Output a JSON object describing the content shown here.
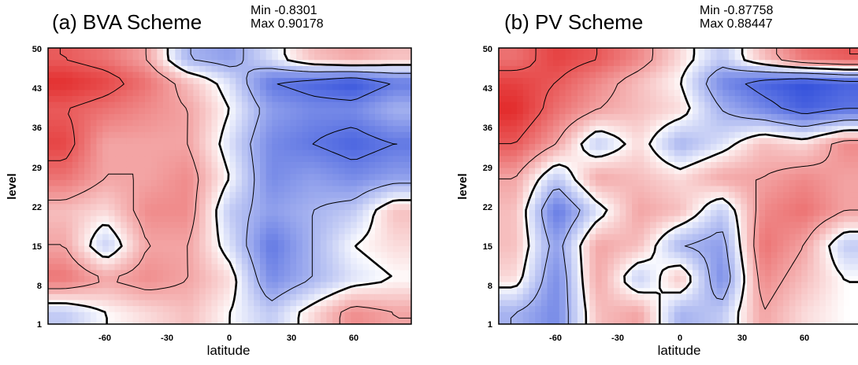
{
  "chart_data": [
    {
      "type": "heatmap",
      "title": "(a) BVA Scheme",
      "stats": {
        "min": "Min -0.8301",
        "max": "Max 0.90178"
      },
      "xlabel": "latitude",
      "ylabel": "level",
      "x_ticks": [
        "-60",
        "-30",
        "0",
        "30",
        "60"
      ],
      "y_ticks": [
        "1",
        "8",
        "15",
        "22",
        "29",
        "36",
        "43",
        "50"
      ],
      "xlim": [
        -88,
        88
      ],
      "ylim": [
        1,
        50
      ],
      "vmin": -0.8301,
      "vmax": 0.90178,
      "colormap": {
        "negative": "#1f3fd8",
        "zero": "#ffffff",
        "positive": "#e01818"
      },
      "contours": true,
      "x": [
        -80,
        -60,
        -40,
        -20,
        0,
        20,
        40,
        60,
        80
      ],
      "y": [
        3,
        9,
        15,
        21,
        27,
        33,
        39,
        44,
        48
      ],
      "z": [
        [
          -0.2,
          0.0,
          0.1,
          0.2,
          0.0,
          -0.2,
          0.1,
          0.4,
          0.3
        ],
        [
          0.5,
          0.3,
          0.4,
          0.3,
          0.1,
          -0.5,
          -0.3,
          -0.1,
          0.0
        ],
        [
          0.3,
          -0.2,
          0.3,
          0.3,
          -0.1,
          -0.6,
          -0.3,
          0.0,
          0.1
        ],
        [
          0.2,
          0.1,
          0.4,
          0.4,
          -0.2,
          -0.4,
          -0.3,
          -0.2,
          0.2
        ],
        [
          0.5,
          0.3,
          0.3,
          0.4,
          0.0,
          -0.5,
          -0.4,
          -0.5,
          -0.4
        ],
        [
          0.7,
          0.3,
          0.3,
          0.3,
          -0.1,
          -0.5,
          -0.6,
          -0.7,
          -0.6
        ],
        [
          0.6,
          0.5,
          0.4,
          0.3,
          0.0,
          -0.4,
          -0.5,
          -0.5,
          -0.3
        ],
        [
          0.8,
          0.7,
          0.5,
          0.2,
          -0.1,
          -0.6,
          -0.7,
          -0.8,
          -0.6
        ],
        [
          0.6,
          0.5,
          0.3,
          -0.3,
          -0.4,
          -0.1,
          0.2,
          0.3,
          0.2
        ]
      ]
    },
    {
      "type": "heatmap",
      "title": "(b) PV Scheme",
      "stats": {
        "min": "Min -0.87758",
        "max": "Max 0.88447"
      },
      "xlabel": "latitude",
      "ylabel": "level",
      "x_ticks": [
        "-60",
        "-30",
        "0",
        "30",
        "60"
      ],
      "y_ticks": [
        "1",
        "8",
        "15",
        "22",
        "29",
        "36",
        "43",
        "50"
      ],
      "xlim": [
        -88,
        88
      ],
      "ylim": [
        1,
        50
      ],
      "vmin": -0.87758,
      "vmax": 0.88447,
      "colormap": {
        "negative": "#1f3fd8",
        "zero": "#ffffff",
        "positive": "#e01818"
      },
      "contours": true,
      "x": [
        -80,
        -60,
        -40,
        -20,
        0,
        20,
        40,
        60,
        80
      ],
      "y": [
        3,
        9,
        15,
        21,
        27,
        33,
        39,
        44,
        48
      ],
      "z": [
        [
          -0.3,
          -0.5,
          0.2,
          0.3,
          -0.3,
          -0.2,
          0.3,
          0.1,
          0.0
        ],
        [
          0.1,
          -0.5,
          0.3,
          -0.2,
          0.2,
          -0.5,
          0.4,
          0.2,
          0.0
        ],
        [
          0.2,
          -0.4,
          0.3,
          0.2,
          -0.3,
          -0.4,
          0.5,
          0.3,
          -0.2
        ],
        [
          0.2,
          -0.6,
          -0.1,
          0.3,
          0.2,
          -0.2,
          0.4,
          0.5,
          0.3
        ],
        [
          0.3,
          -0.2,
          0.3,
          0.2,
          0.1,
          0.3,
          0.3,
          0.4,
          0.3
        ],
        [
          0.6,
          0.3,
          -0.2,
          0.1,
          -0.3,
          -0.1,
          0.2,
          0.1,
          0.4
        ],
        [
          0.8,
          0.5,
          0.3,
          0.2,
          0.1,
          -0.3,
          -0.5,
          -0.7,
          -0.6
        ],
        [
          0.7,
          0.6,
          0.4,
          0.2,
          0.0,
          -0.5,
          -0.7,
          -0.8,
          -0.7
        ],
        [
          0.5,
          0.7,
          0.6,
          0.4,
          0.1,
          -0.2,
          0.2,
          0.5,
          0.6
        ]
      ]
    }
  ]
}
